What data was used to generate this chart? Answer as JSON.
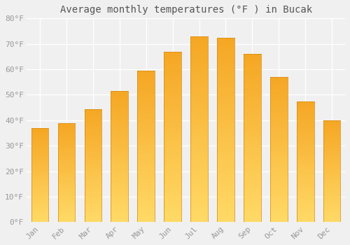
{
  "title": "Average monthly temperatures (°F ) in Bucak",
  "months": [
    "Jan",
    "Feb",
    "Mar",
    "Apr",
    "May",
    "Jun",
    "Jul",
    "Aug",
    "Sep",
    "Oct",
    "Nov",
    "Dec"
  ],
  "values": [
    37,
    39,
    44.5,
    51.5,
    59.5,
    67,
    73,
    72.5,
    66,
    57,
    47.5,
    40
  ],
  "bar_color_top": "#F5A623",
  "bar_color_bottom": "#FFD966",
  "bar_edge_color": "#D4880A",
  "ylim": [
    0,
    80
  ],
  "yticks": [
    0,
    10,
    20,
    30,
    40,
    50,
    60,
    70,
    80
  ],
  "background_color": "#f0f0f0",
  "plot_bg_color": "#f0f0f0",
  "grid_color": "#ffffff",
  "title_fontsize": 10,
  "tick_fontsize": 8,
  "title_color": "#555555",
  "tick_color": "#999999"
}
